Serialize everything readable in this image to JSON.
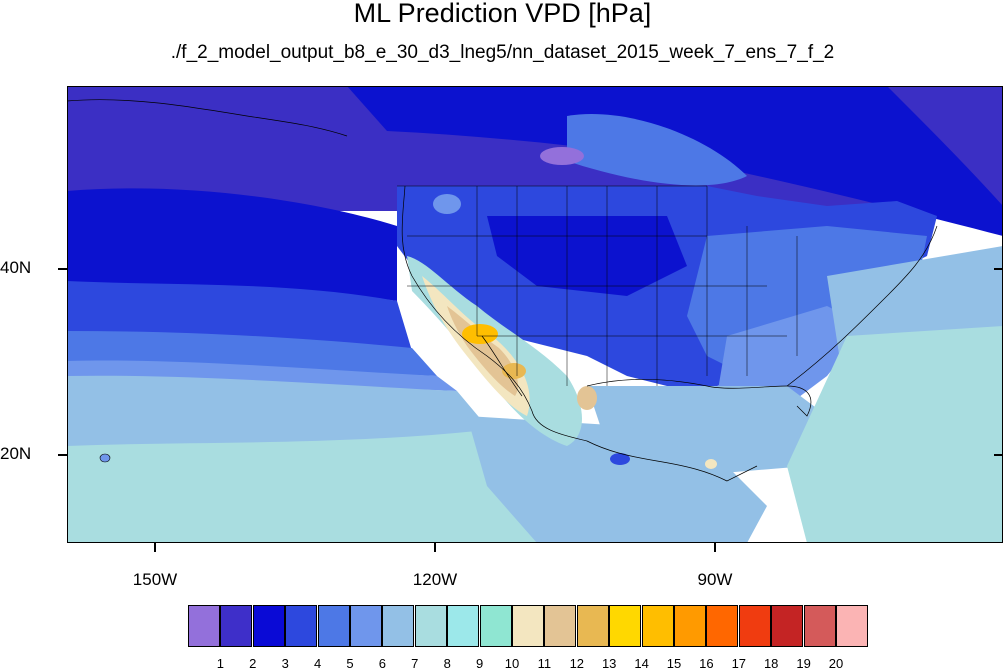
{
  "title": "ML Prediction VPD [hPa]",
  "subtitle": "./f_2_model_output_b8_e_30_d3_lneg5/nn_dataset_2015_week_7_ens_7_f_2",
  "lat_labels": [
    "40N",
    "20N"
  ],
  "lon_labels": [
    "150W",
    "120W",
    "90W"
  ],
  "colorbar": {
    "labels": [
      "1",
      "2",
      "3",
      "4",
      "5",
      "6",
      "7",
      "8",
      "9",
      "10",
      "11",
      "12",
      "13",
      "14",
      "15",
      "16",
      "17",
      "18",
      "19",
      "20"
    ],
    "colors": [
      "#9370db",
      "#3e2fc9",
      "#0a0ad6",
      "#2d48de",
      "#4d78e6",
      "#6f96ec",
      "#93c0e6",
      "#a9dde0",
      "#9ce8ea",
      "#8fe6d2",
      "#f3e6c0",
      "#e3c495",
      "#e8b852",
      "#ffd800",
      "#ffbe00",
      "#ff9a00",
      "#ff6700",
      "#f03c10",
      "#c42424",
      "#d45a5a",
      "#fbb4b4"
    ]
  },
  "colors": {
    "ocean_north": "#3b2fc4",
    "ocean_mid": "#0c12cf",
    "ocean_band": "#4d78e6",
    "ocean_south": "#93c0e6",
    "tropics": "#a9dde0",
    "land_north": "#2d48de",
    "southwest_hot": "#ffbe00",
    "border": "#000000"
  }
}
